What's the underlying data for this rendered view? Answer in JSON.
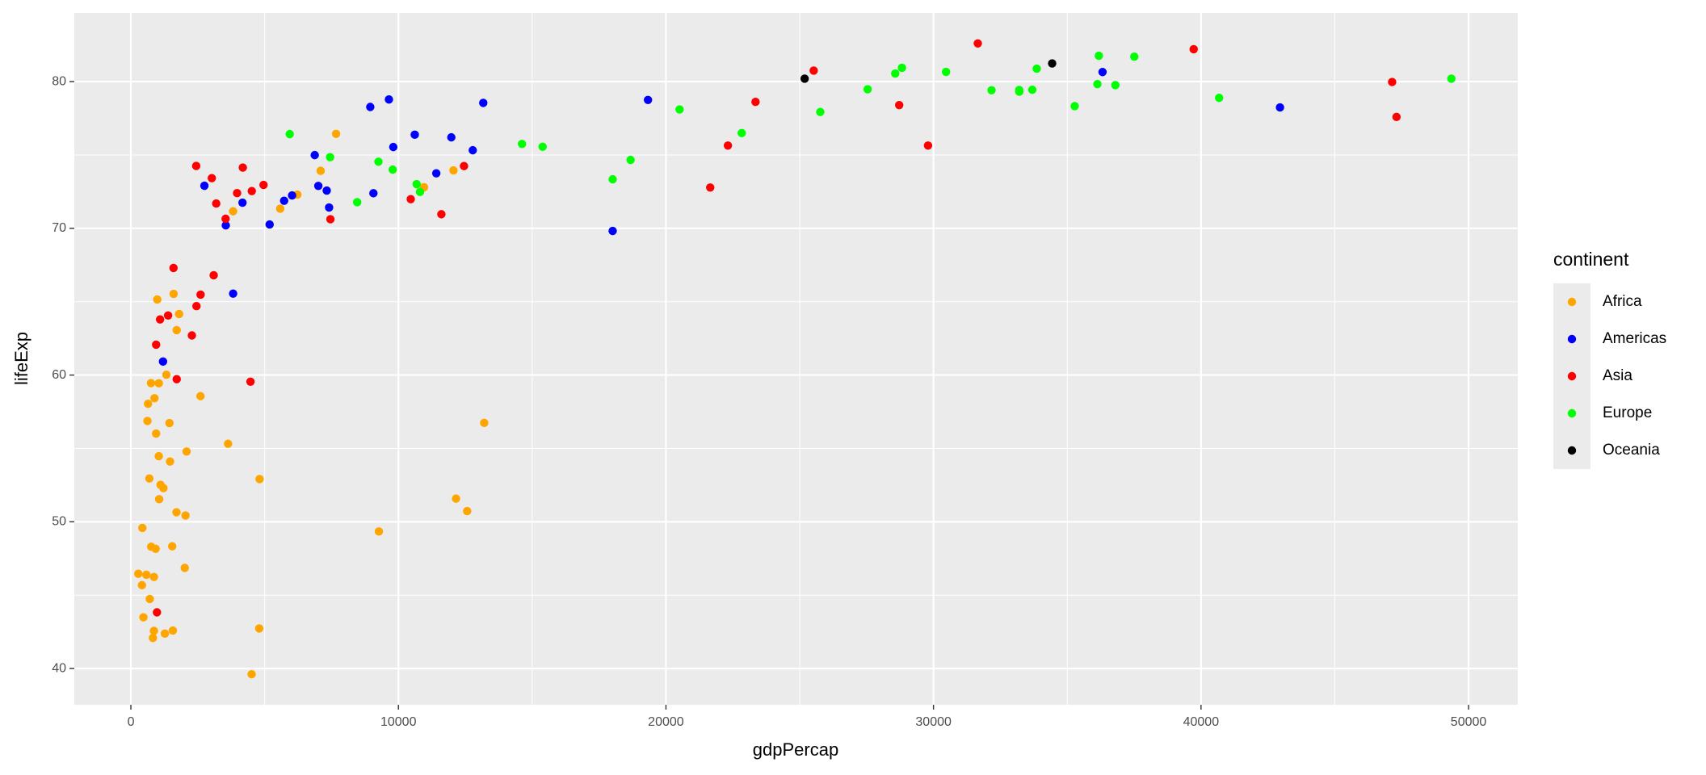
{
  "chart_data": {
    "type": "scatter",
    "x_label": "gdpPercap",
    "y_label": "lifeExp",
    "legend_title": "continent",
    "legend_position": "right",
    "grid": true,
    "xlim": [
      -2114,
      51840
    ],
    "ylim": [
      37.53,
      84.68
    ],
    "xticks": [
      0,
      10000,
      20000,
      30000,
      40000,
      50000
    ],
    "yticks": [
      40,
      50,
      60,
      70,
      80
    ],
    "series": [
      {
        "name": "Africa",
        "color": "#ffa500",
        "x": [
          6223.4,
          4797.2,
          1441.3,
          12569.9,
          1217.0,
          430.1,
          2042.1,
          706.0,
          1704.1,
          986.1,
          277.6,
          3632.6,
          1544.8,
          2082.5,
          5581.2,
          12154.1,
          641.4,
          690.8,
          13206.5,
          752.7,
          1327.6,
          942.7,
          579.2,
          1463.2,
          1569.3,
          414.5,
          12057.5,
          1044.8,
          759.3,
          1042.6,
          1803.2,
          10957.0,
          3820.2,
          823.7,
          4811.1,
          619.7,
          2014.0,
          7670.1,
          863.1,
          1598.4,
          1712.5,
          862.5,
          926.1,
          9269.7,
          2602.4,
          4513.5,
          1107.5,
          883.0,
          7093.0,
          1056.4,
          1271.2,
          469.7
        ],
        "values": [
          72.3,
          42.73,
          56.73,
          50.73,
          52.3,
          49.58,
          50.43,
          44.74,
          50.65,
          65.15,
          46.46,
          55.32,
          48.33,
          54.79,
          71.34,
          51.58,
          58.04,
          52.95,
          56.74,
          59.45,
          60.02,
          56.01,
          46.39,
          54.11,
          42.59,
          45.68,
          73.95,
          59.44,
          48.3,
          54.47,
          64.16,
          72.8,
          71.16,
          42.08,
          52.91,
          56.87,
          46.86,
          76.44,
          46.24,
          65.53,
          63.06,
          42.57,
          48.16,
          49.34,
          58.56,
          39.61,
          52.52,
          58.42,
          73.92,
          51.54,
          42.38,
          43.49
        ]
      },
      {
        "name": "Americas",
        "color": "#0000ff",
        "x": [
          12779.4,
          3822.1,
          9065.8,
          36319.2,
          13171.6,
          7006.6,
          9645.1,
          8948.1,
          6025.4,
          6873.3,
          5728.4,
          5186.1,
          1201.6,
          3548.3,
          7320.9,
          11977.6,
          2749.3,
          9809.2,
          4172.8,
          7408.9,
          19328.7,
          18008.5,
          42951.7,
          10611.5,
          11415.8
        ],
        "values": [
          75.32,
          65.55,
          72.39,
          80.65,
          78.55,
          72.89,
          78.78,
          78.27,
          72.24,
          74.99,
          71.88,
          70.26,
          60.92,
          70.2,
          72.57,
          76.2,
          72.9,
          75.54,
          71.75,
          71.42,
          78.75,
          69.82,
          78.24,
          76.38,
          73.75
        ]
      },
      {
        "name": "Asia",
        "color": "#ff0000",
        "x": [
          974.6,
          29796.0,
          1391.3,
          1713.8,
          4959.1,
          39725.0,
          2452.2,
          3540.7,
          11605.7,
          4471.1,
          25523.3,
          31656.1,
          4519.5,
          1593.1,
          23348.1,
          47307.0,
          10461.1,
          12451.7,
          3095.8,
          944.0,
          1091.4,
          22316.2,
          2605.9,
          3190.5,
          21654.8,
          47143.2,
          3970.1,
          4184.5,
          28718.3,
          7458.4,
          2441.6,
          3025.3,
          2280.8
        ],
        "values": [
          43.83,
          75.64,
          64.06,
          59.72,
          72.96,
          82.21,
          64.7,
          70.65,
          70.96,
          59.55,
          80.75,
          82.6,
          72.54,
          67.3,
          78.62,
          77.59,
          71.99,
          74.24,
          66.8,
          62.07,
          63.79,
          75.64,
          65.48,
          71.69,
          72.78,
          79.97,
          72.4,
          74.14,
          78.4,
          70.62,
          74.25,
          73.42,
          62.7
        ]
      },
      {
        "name": "Europe",
        "color": "#00ff00",
        "x": [
          5937.0,
          36126.5,
          33692.6,
          7446.3,
          10680.8,
          14619.2,
          22833.3,
          35278.4,
          33207.1,
          30470.0,
          32170.4,
          27538.4,
          18008.9,
          36181.0,
          40676.0,
          28569.7,
          9253.9,
          36798.0,
          49357.2,
          15389.9,
          20509.6,
          10808.5,
          9786.5,
          18678.3,
          25768.3,
          28821.1,
          33859.7,
          37506.4,
          8458.3,
          33203.3
        ],
        "values": [
          76.42,
          79.83,
          79.44,
          74.85,
          73.01,
          75.75,
          76.49,
          78.33,
          79.31,
          80.66,
          79.41,
          79.48,
          73.34,
          81.76,
          78.89,
          80.55,
          74.54,
          79.76,
          80.2,
          75.56,
          78.1,
          72.48,
          74.0,
          74.66,
          77.93,
          80.94,
          80.88,
          81.7,
          71.78,
          79.43
        ]
      },
      {
        "name": "Oceania",
        "color": "#000000",
        "x": [
          34435.4,
          25185.0
        ],
        "values": [
          81.24,
          80.2
        ]
      }
    ]
  }
}
